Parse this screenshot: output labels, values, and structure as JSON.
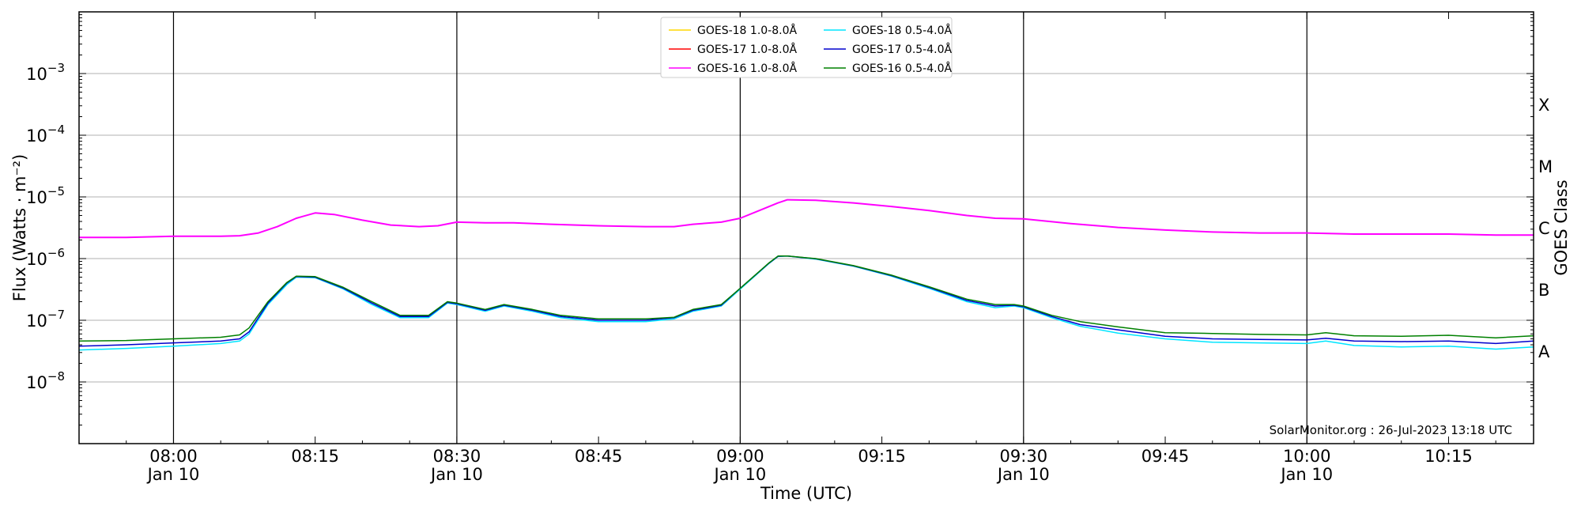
{
  "chart_data": {
    "type": "line",
    "xlabel": "Time (UTC)",
    "ylabel": "Flux (Watts · m⁻²)",
    "y2label": "GOES Class",
    "y_scale": "log",
    "ylim": [
      1e-09,
      0.01
    ],
    "xlim": [
      "07:50",
      "10:24"
    ],
    "grid": "horizontal",
    "legend_position": "top-center",
    "x_ticks": [
      {
        "time": "08:00",
        "label": "08:00",
        "date": "Jan 10"
      },
      {
        "time": "08:15",
        "label": "08:15",
        "date": ""
      },
      {
        "time": "08:30",
        "label": "08:30",
        "date": "Jan 10"
      },
      {
        "time": "08:45",
        "label": "08:45",
        "date": ""
      },
      {
        "time": "09:00",
        "label": "09:00",
        "date": "Jan 10"
      },
      {
        "time": "09:15",
        "label": "09:15",
        "date": ""
      },
      {
        "time": "09:30",
        "label": "09:30",
        "date": "Jan 10"
      },
      {
        "time": "09:45",
        "label": "09:45",
        "date": ""
      },
      {
        "time": "10:00",
        "label": "10:00",
        "date": "Jan 10"
      },
      {
        "time": "10:15",
        "label": "10:15",
        "date": ""
      }
    ],
    "vertical_lines": [
      "08:00",
      "08:30",
      "09:00",
      "09:30",
      "10:00"
    ],
    "y_ticks": [
      {
        "value": 1e-08,
        "base": "10",
        "exp": "−8"
      },
      {
        "value": 1e-07,
        "base": "10",
        "exp": "−7"
      },
      {
        "value": 1e-06,
        "base": "10",
        "exp": "−6"
      },
      {
        "value": 1e-05,
        "base": "10",
        "exp": "−5"
      },
      {
        "value": 0.0001,
        "base": "10",
        "exp": "−4"
      },
      {
        "value": 0.001,
        "base": "10",
        "exp": "−3"
      }
    ],
    "goes_classes": [
      {
        "label": "A",
        "value": 3.16e-08
      },
      {
        "label": "B",
        "value": 3.16e-07
      },
      {
        "label": "C",
        "value": 3.16e-06
      },
      {
        "label": "M",
        "value": 3.16e-05
      },
      {
        "label": "X",
        "value": 0.000316
      }
    ],
    "series": [
      {
        "name": "GOES-18 1.0-8.0Å",
        "color": "#ffd700",
        "draw": false,
        "values": []
      },
      {
        "name": "GOES-17 1.0-8.0Å",
        "color": "#ff0000",
        "draw": false,
        "values": []
      },
      {
        "name": "GOES-16 1.0-8.0Å",
        "color": "#ff00ff",
        "draw": true,
        "width": 2,
        "x": [
          "07:50",
          "07:55",
          "08:00",
          "08:05",
          "08:07",
          "08:09",
          "08:11",
          "08:13",
          "08:15",
          "08:17",
          "08:20",
          "08:23",
          "08:26",
          "08:28",
          "08:30",
          "08:33",
          "08:36",
          "08:40",
          "08:45",
          "08:50",
          "08:53",
          "08:55",
          "08:58",
          "09:00",
          "09:02",
          "09:04",
          "09:05",
          "09:08",
          "09:12",
          "09:16",
          "09:20",
          "09:24",
          "09:27",
          "09:30",
          "09:35",
          "09:40",
          "09:45",
          "09:50",
          "09:55",
          "10:00",
          "10:05",
          "10:10",
          "10:15",
          "10:20",
          "10:24"
        ],
        "values": [
          2.2e-06,
          2.2e-06,
          2.3e-06,
          2.3e-06,
          2.35e-06,
          2.6e-06,
          3.3e-06,
          4.5e-06,
          5.5e-06,
          5.2e-06,
          4.2e-06,
          3.5e-06,
          3.3e-06,
          3.4e-06,
          3.9e-06,
          3.8e-06,
          3.8e-06,
          3.6e-06,
          3.4e-06,
          3.3e-06,
          3.3e-06,
          3.6e-06,
          3.9e-06,
          4.5e-06,
          6e-06,
          8e-06,
          9e-06,
          8.8e-06,
          8e-06,
          7e-06,
          6e-06,
          5e-06,
          4.5e-06,
          4.4e-06,
          3.7e-06,
          3.2e-06,
          2.9e-06,
          2.7e-06,
          2.6e-06,
          2.6e-06,
          2.5e-06,
          2.5e-06,
          2.5e-06,
          2.4e-06,
          2.4e-06
        ]
      },
      {
        "name": "GOES-18 0.5-4.0Å",
        "color": "#00e5ff",
        "draw": true,
        "width": 1.5,
        "x": [
          "07:50",
          "07:55",
          "08:00",
          "08:05",
          "08:07",
          "08:08",
          "08:10",
          "08:12",
          "08:13",
          "08:15",
          "08:18",
          "08:21",
          "08:24",
          "08:27",
          "08:29",
          "08:30",
          "08:33",
          "08:35",
          "08:38",
          "08:41",
          "08:45",
          "08:50",
          "08:53",
          "08:55",
          "08:58",
          "09:00",
          "09:03",
          "09:04",
          "09:05",
          "09:08",
          "09:12",
          "09:16",
          "09:20",
          "09:24",
          "09:27",
          "09:29",
          "09:30",
          "09:33",
          "09:36",
          "09:40",
          "09:45",
          "09:50",
          "09:55",
          "10:00",
          "10:02",
          "10:05",
          "10:10",
          "10:15",
          "10:20",
          "10:24"
        ],
        "values": [
          3.3e-08,
          3.5e-08,
          3.8e-08,
          4.2e-08,
          4.6e-08,
          6e-08,
          1.8e-07,
          3.8e-07,
          5e-07,
          4.9e-07,
          3.2e-07,
          1.8e-07,
          1.1e-07,
          1.1e-07,
          1.9e-07,
          1.8e-07,
          1.4e-07,
          1.7e-07,
          1.4e-07,
          1.1e-07,
          9.5e-08,
          9.5e-08,
          1.05e-07,
          1.4e-07,
          1.7e-07,
          3.2e-07,
          8.2e-07,
          1.08e-06,
          1.1e-06,
          9.8e-07,
          7.5e-07,
          5.2e-07,
          3.3e-07,
          2e-07,
          1.6e-07,
          1.7e-07,
          1.6e-07,
          1.1e-07,
          8e-08,
          6.2e-08,
          5e-08,
          4.4e-08,
          4.3e-08,
          4.2e-08,
          4.6e-08,
          3.9e-08,
          3.7e-08,
          3.8e-08,
          3.4e-08,
          3.7e-08
        ]
      },
      {
        "name": "GOES-17 0.5-4.0Å",
        "color": "#0000cd",
        "draw": true,
        "width": 1.5,
        "x": [
          "07:50",
          "07:55",
          "08:00",
          "08:05",
          "08:07",
          "08:08",
          "08:10",
          "08:12",
          "08:13",
          "08:15",
          "08:18",
          "08:21",
          "08:24",
          "08:27",
          "08:29",
          "08:30",
          "08:33",
          "08:35",
          "08:38",
          "08:41",
          "08:45",
          "08:50",
          "08:53",
          "08:55",
          "08:58",
          "09:00",
          "09:03",
          "09:04",
          "09:05",
          "09:08",
          "09:12",
          "09:16",
          "09:20",
          "09:24",
          "09:27",
          "09:29",
          "09:30",
          "09:33",
          "09:36",
          "09:40",
          "09:45",
          "09:50",
          "09:55",
          "10:00",
          "10:02",
          "10:05",
          "10:10",
          "10:15",
          "10:20",
          "10:24"
        ],
        "values": [
          3.8e-08,
          4e-08,
          4.3e-08,
          4.6e-08,
          5e-08,
          6.5e-08,
          1.9e-07,
          4e-07,
          5.1e-07,
          5e-07,
          3.3e-07,
          1.9e-07,
          1.15e-07,
          1.15e-07,
          1.95e-07,
          1.85e-07,
          1.45e-07,
          1.75e-07,
          1.45e-07,
          1.15e-07,
          1e-07,
          1e-07,
          1.1e-07,
          1.45e-07,
          1.75e-07,
          3.3e-07,
          8.3e-07,
          1.09e-06,
          1.1e-06,
          9.9e-07,
          7.6e-07,
          5.3e-07,
          3.4e-07,
          2.1e-07,
          1.7e-07,
          1.75e-07,
          1.65e-07,
          1.15e-07,
          8.5e-08,
          7e-08,
          5.5e-08,
          5e-08,
          4.9e-08,
          4.8e-08,
          5.1e-08,
          4.6e-08,
          4.5e-08,
          4.6e-08,
          4.2e-08,
          4.6e-08
        ]
      },
      {
        "name": "GOES-16 0.5-4.0Å",
        "color": "#008000",
        "draw": true,
        "width": 1.5,
        "x": [
          "07:50",
          "07:55",
          "08:00",
          "08:05",
          "08:07",
          "08:08",
          "08:10",
          "08:12",
          "08:13",
          "08:15",
          "08:18",
          "08:21",
          "08:24",
          "08:27",
          "08:29",
          "08:30",
          "08:33",
          "08:35",
          "08:38",
          "08:41",
          "08:45",
          "08:50",
          "08:53",
          "08:55",
          "08:58",
          "09:00",
          "09:03",
          "09:04",
          "09:05",
          "09:08",
          "09:12",
          "09:16",
          "09:20",
          "09:24",
          "09:27",
          "09:29",
          "09:30",
          "09:33",
          "09:36",
          "09:40",
          "09:45",
          "09:50",
          "09:55",
          "10:00",
          "10:02",
          "10:05",
          "10:10",
          "10:15",
          "10:20",
          "10:24"
        ],
        "values": [
          4.6e-08,
          4.7e-08,
          5e-08,
          5.3e-08,
          5.8e-08,
          7.5e-08,
          2e-07,
          4.1e-07,
          5.2e-07,
          5.1e-07,
          3.4e-07,
          2e-07,
          1.2e-07,
          1.2e-07,
          2e-07,
          1.9e-07,
          1.5e-07,
          1.8e-07,
          1.5e-07,
          1.2e-07,
          1.05e-07,
          1.05e-07,
          1.12e-07,
          1.5e-07,
          1.8e-07,
          3.3e-07,
          8.4e-07,
          1.1e-06,
          1.1e-06,
          1e-06,
          7.7e-07,
          5.4e-07,
          3.5e-07,
          2.2e-07,
          1.8e-07,
          1.8e-07,
          1.7e-07,
          1.2e-07,
          9.5e-08,
          7.8e-08,
          6.3e-08,
          6.1e-08,
          5.9e-08,
          5.8e-08,
          6.3e-08,
          5.6e-08,
          5.5e-08,
          5.7e-08,
          5.2e-08,
          5.6e-08
        ]
      }
    ],
    "legend_columns": [
      [
        "GOES-18 1.0-8.0Å",
        "GOES-17 1.0-8.0Å",
        "GOES-16 1.0-8.0Å"
      ],
      [
        "GOES-18 0.5-4.0Å",
        "GOES-17 0.5-4.0Å",
        "GOES-16 0.5-4.0Å"
      ]
    ],
    "footer": "SolarMonitor.org : 26-Jul-2023 13:18 UTC"
  }
}
